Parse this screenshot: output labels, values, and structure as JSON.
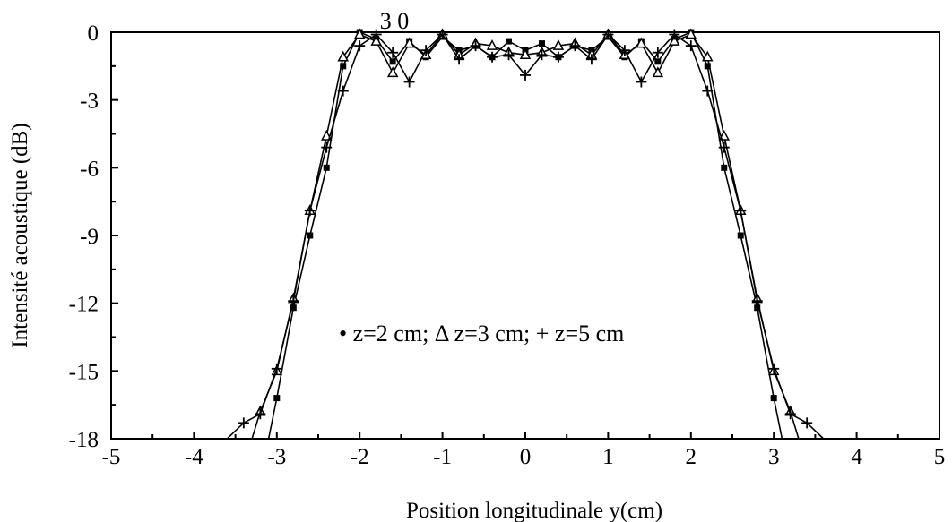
{
  "chart_data": {
    "type": "line",
    "title": "",
    "top_label": "3 0",
    "xlabel": "Position longitudinale y(cm)",
    "ylabel": "Intensité acoustique (dB)",
    "xlim": [
      -5,
      5
    ],
    "ylim": [
      -18,
      0
    ],
    "xticks": [
      -5,
      -4,
      -3,
      -2,
      -1,
      0,
      1,
      2,
      3,
      4,
      5
    ],
    "yticks": [
      0,
      -3,
      -6,
      -9,
      -12,
      -15,
      -18
    ],
    "xtick_labels": [
      "-5",
      "-4",
      "-3",
      "-2",
      "-1",
      "0",
      "1",
      "2",
      "3",
      "4",
      "5"
    ],
    "ytick_labels": [
      "0",
      "-3",
      "-6",
      "-9",
      "-12",
      "-15",
      "-18"
    ],
    "grid": false,
    "legend_text": "• z=2 cm; Δ z=3 cm; + z=5 cm",
    "series": [
      {
        "marker": "filled-square",
        "x": [
          -3.1,
          -3.0,
          -2.8,
          -2.6,
          -2.4,
          -2.2,
          -2.0,
          -1.8,
          -1.6,
          -1.4,
          -1.2,
          -1.0,
          -0.8,
          -0.6,
          -0.4,
          -0.2,
          0.0,
          0.2,
          0.4,
          0.6,
          0.8,
          1.0,
          1.2,
          1.4,
          1.6,
          1.8,
          2.0,
          2.2,
          2.4,
          2.6,
          2.8,
          3.0,
          3.1
        ],
        "y": [
          -18,
          -16.2,
          -12.2,
          -9.0,
          -6.0,
          -1.5,
          0.0,
          -0.3,
          -1.3,
          -0.4,
          -1.1,
          -0.2,
          -0.8,
          -0.6,
          -1.1,
          -0.4,
          -0.8,
          -0.5,
          -1.1,
          -0.6,
          -0.8,
          -0.2,
          -1.1,
          -0.4,
          -1.3,
          -0.3,
          0.0,
          -1.5,
          -6.0,
          -9.0,
          -12.2,
          -16.2,
          -18
        ]
      },
      {
        "marker": "triangle",
        "x": [
          -3.3,
          -3.2,
          -3.0,
          -2.8,
          -2.6,
          -2.4,
          -2.2,
          -2.0,
          -1.8,
          -1.6,
          -1.4,
          -1.2,
          -1.0,
          -0.8,
          -0.6,
          -0.4,
          -0.2,
          0.0,
          0.2,
          0.4,
          0.6,
          0.8,
          1.0,
          1.2,
          1.4,
          1.6,
          1.8,
          2.0,
          2.2,
          2.4,
          2.6,
          2.8,
          3.0,
          3.2,
          3.3
        ],
        "y": [
          -18,
          -16.8,
          -15.0,
          -11.8,
          -7.9,
          -4.6,
          -1.1,
          -0.1,
          -0.4,
          -1.8,
          -0.5,
          -1.0,
          -0.1,
          -1.0,
          -0.5,
          -0.6,
          -0.9,
          -1.0,
          -0.9,
          -0.6,
          -0.5,
          -1.0,
          -0.1,
          -1.0,
          -0.5,
          -1.8,
          -0.4,
          -0.1,
          -1.1,
          -4.6,
          -7.9,
          -11.8,
          -15.0,
          -16.8,
          -18
        ]
      },
      {
        "marker": "plus",
        "x": [
          -3.6,
          -3.4,
          -3.2,
          -3.0,
          -2.8,
          -2.6,
          -2.4,
          -2.2,
          -2.0,
          -1.8,
          -1.6,
          -1.4,
          -1.2,
          -1.0,
          -0.8,
          -0.6,
          -0.4,
          -0.2,
          0.0,
          0.2,
          0.4,
          0.6,
          0.8,
          1.0,
          1.2,
          1.4,
          1.6,
          1.8,
          2.0,
          2.2,
          2.4,
          2.6,
          2.8,
          3.0,
          3.2,
          3.4,
          3.6
        ],
        "y": [
          -18,
          -17.3,
          -16.9,
          -14.9,
          -11.9,
          -7.9,
          -5.1,
          -2.6,
          -0.6,
          -0.1,
          -0.9,
          -2.2,
          -0.8,
          -0.1,
          -1.2,
          -0.6,
          -1.1,
          -1.0,
          -1.9,
          -1.0,
          -1.1,
          -0.6,
          -1.2,
          -0.1,
          -0.8,
          -2.2,
          -0.9,
          -0.1,
          -0.6,
          -2.6,
          -5.1,
          -7.9,
          -11.9,
          -14.9,
          -16.9,
          -17.3,
          -18
        ]
      }
    ]
  }
}
